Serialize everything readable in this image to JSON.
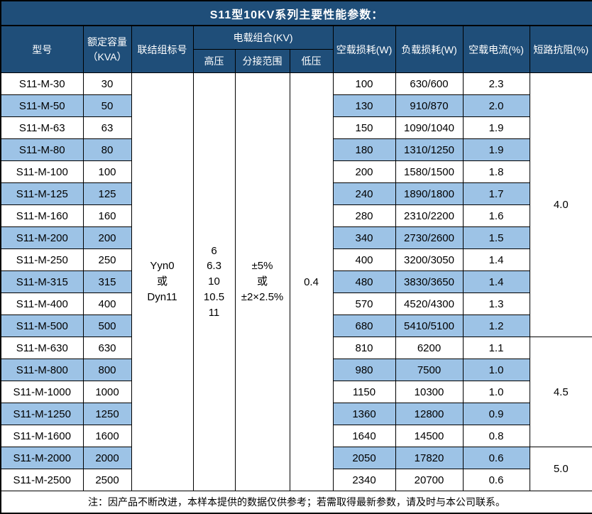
{
  "title": "S11型10KV系列主要性能参数：",
  "colors": {
    "header_bg": "#1F4E79",
    "stripe_bg": "#9DC3E6",
    "border": "#000000",
    "header_text": "#FFFFFF",
    "body_text": "#000000"
  },
  "header": {
    "model": "型号",
    "capacity": [
      "额定容量",
      "（KVA）"
    ],
    "connection": "联结组标号",
    "voltage_group": "电载组合(KV)",
    "hv": "高压",
    "tap": "分接范围",
    "lv": "低压",
    "noload_loss": "空载损耗(W)",
    "load_loss": "负载损耗(W)",
    "noload_current": "空载电流(%)",
    "impedance": "短路抗阻(%)"
  },
  "merged": {
    "connection": [
      "Yyn0",
      "或",
      "Dyn11"
    ],
    "hv": [
      "6",
      "6.3",
      "10",
      "10.5",
      "11"
    ],
    "tap": [
      "±5%",
      "或",
      "±2×2.5%"
    ],
    "lv": "0.4"
  },
  "rows": [
    {
      "model": "S11-M-30",
      "capacity": "30",
      "noload_loss": "100",
      "load_loss": "630/600",
      "noload_current": "2.3"
    },
    {
      "model": "S11-M-50",
      "capacity": "50",
      "noload_loss": "130",
      "load_loss": "910/870",
      "noload_current": "2.0"
    },
    {
      "model": "S11-M-63",
      "capacity": "63",
      "noload_loss": "150",
      "load_loss": "1090/1040",
      "noload_current": "1.9"
    },
    {
      "model": "S11-M-80",
      "capacity": "80",
      "noload_loss": "180",
      "load_loss": "1310/1250",
      "noload_current": "1.9"
    },
    {
      "model": "S11-M-100",
      "capacity": "100",
      "noload_loss": "200",
      "load_loss": "1580/1500",
      "noload_current": "1.8"
    },
    {
      "model": "S11-M-125",
      "capacity": "125",
      "noload_loss": "240",
      "load_loss": "1890/1800",
      "noload_current": "1.7"
    },
    {
      "model": "S11-M-160",
      "capacity": "160",
      "noload_loss": "280",
      "load_loss": "2310/2200",
      "noload_current": "1.6"
    },
    {
      "model": "S11-M-200",
      "capacity": "200",
      "noload_loss": "340",
      "load_loss": "2730/2600",
      "noload_current": "1.5"
    },
    {
      "model": "S11-M-250",
      "capacity": "250",
      "noload_loss": "400",
      "load_loss": "3200/3050",
      "noload_current": "1.4"
    },
    {
      "model": "S11-M-315",
      "capacity": "315",
      "noload_loss": "480",
      "load_loss": "3830/3650",
      "noload_current": "1.4"
    },
    {
      "model": "S11-M-400",
      "capacity": "400",
      "noload_loss": "570",
      "load_loss": "4520/4300",
      "noload_current": "1.3"
    },
    {
      "model": "S11-M-500",
      "capacity": "500",
      "noload_loss": "680",
      "load_loss": "5410/5100",
      "noload_current": "1.2"
    },
    {
      "model": "S11-M-630",
      "capacity": "630",
      "noload_loss": "810",
      "load_loss": "6200",
      "noload_current": "1.1"
    },
    {
      "model": "S11-M-800",
      "capacity": "800",
      "noload_loss": "980",
      "load_loss": "7500",
      "noload_current": "1.0"
    },
    {
      "model": "S11-M-1000",
      "capacity": "1000",
      "noload_loss": "1150",
      "load_loss": "10300",
      "noload_current": "1.0"
    },
    {
      "model": "S11-M-1250",
      "capacity": "1250",
      "noload_loss": "1360",
      "load_loss": "12800",
      "noload_current": "0.9"
    },
    {
      "model": "S11-M-1600",
      "capacity": "1600",
      "noload_loss": "1640",
      "load_loss": "14500",
      "noload_current": "0.8"
    },
    {
      "model": "S11-M-2000",
      "capacity": "2000",
      "noload_loss": "2050",
      "load_loss": "17820",
      "noload_current": "0.6"
    },
    {
      "model": "S11-M-2500",
      "capacity": "2500",
      "noload_loss": "2340",
      "load_loss": "20700",
      "noload_current": "0.6"
    }
  ],
  "impedance_groups": [
    {
      "value": "4.0",
      "start": 0,
      "span": 12
    },
    {
      "value": "4.5",
      "start": 12,
      "span": 5
    },
    {
      "value": "5.0",
      "start": 17,
      "span": 2
    }
  ],
  "note": "注：因产品不断改进，本样本提供的数据仅供参考；若需取得最新参数，请及时与本公司联系。"
}
